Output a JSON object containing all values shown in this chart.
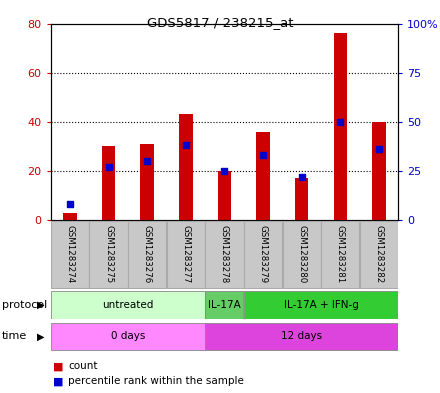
{
  "title": "GDS5817 / 238215_at",
  "samples": [
    "GSM1283274",
    "GSM1283275",
    "GSM1283276",
    "GSM1283277",
    "GSM1283278",
    "GSM1283279",
    "GSM1283280",
    "GSM1283281",
    "GSM1283282"
  ],
  "counts": [
    3,
    30,
    31,
    43,
    20,
    36,
    17,
    76,
    40
  ],
  "percentile_ranks": [
    8,
    27,
    30,
    38,
    25,
    33,
    22,
    50,
    36
  ],
  "ylim_left": [
    0,
    80
  ],
  "ylim_right": [
    0,
    100
  ],
  "yticks_left": [
    0,
    20,
    40,
    60,
    80
  ],
  "yticks_right": [
    0,
    25,
    50,
    75,
    100
  ],
  "ytick_labels_left": [
    "0",
    "20",
    "40",
    "60",
    "80"
  ],
  "ytick_labels_right": [
    "0",
    "25",
    "50",
    "75",
    "100%"
  ],
  "count_color": "#cc0000",
  "percentile_color": "#0000cc",
  "bar_width": 0.35,
  "protocol_groups": [
    {
      "label": "untreated",
      "start": 0,
      "end": 3,
      "color": "#ccffcc"
    },
    {
      "label": "IL-17A",
      "start": 4,
      "end": 4,
      "color": "#66cc66"
    },
    {
      "label": "IL-17A + IFN-g",
      "start": 5,
      "end": 8,
      "color": "#33cc33"
    }
  ],
  "time_groups": [
    {
      "label": "0 days",
      "start": 0,
      "end": 3,
      "color": "#ff88ff"
    },
    {
      "label": "12 days",
      "start": 4,
      "end": 8,
      "color": "#dd44dd"
    }
  ],
  "protocol_label": "protocol",
  "time_label": "time",
  "legend_count": "count",
  "legend_percentile": "percentile rank within the sample",
  "background_color": "white",
  "tick_label_color_left": "#cc0000",
  "tick_label_color_right": "#0000cc",
  "sample_box_color": "#c8c8c8",
  "sample_box_edge": "#aaaaaa"
}
